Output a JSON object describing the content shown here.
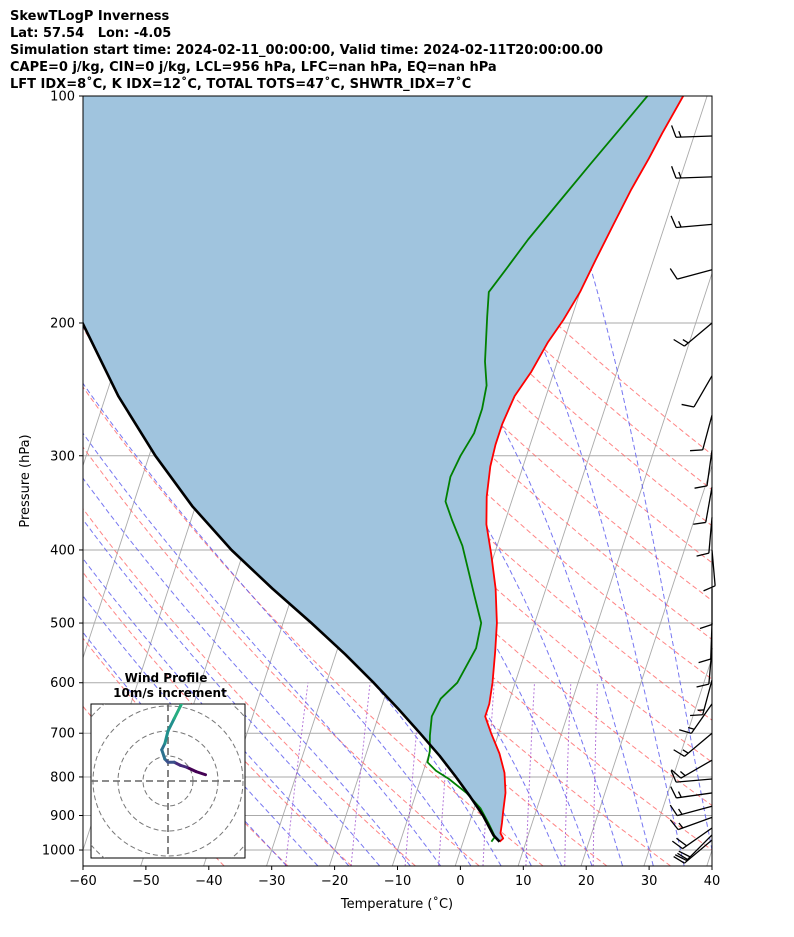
{
  "header": {
    "line1": "SkewTLogP Inverness",
    "line2": "Lat: 57.54   Lon: -4.05",
    "line3": "Simulation start time: 2024-02-11_00:00:00, Valid time: 2024-02-11T20:00:00.00",
    "line4": "CAPE=0 j/kg, CIN=0 j/kg, LCL=956 hPa, LFC=nan hPa, EQ=nan hPa",
    "line5": "LFT IDX=8˚C, K IDX=12˚C, TOTAL TOTS=47˚C, SHWTR_IDX=7˚C"
  },
  "colors": {
    "temperature": "#ff0000",
    "dewpoint": "#008000",
    "parcel": "#000000",
    "cape_shading": "#a0c4de",
    "dry_adiabats": "#ff6666",
    "moist_adiabats": "#5555ee",
    "mixing_ratio": "#9944cc",
    "isotherms": "#aaaaaa"
  },
  "chart_data": [
    {
      "type": "line",
      "subtype": "skew-t log-p",
      "title": "",
      "xlabel": "Temperature (˚C)",
      "ylabel": "Pressure (hPa)",
      "xlim": [
        -60,
        40
      ],
      "ylim": [
        1050,
        100
      ],
      "y_scale": "log",
      "grid": true,
      "x_ticks": [
        "−60",
        "−50",
        "−40",
        "−30",
        "−20",
        "−10",
        "0",
        "10",
        "20",
        "30",
        "40"
      ],
      "y_ticks": [
        "100",
        "200",
        "300",
        "400",
        "500",
        "600",
        "700",
        "800",
        "900",
        "1000"
      ],
      "series": [
        {
          "key": "temperature",
          "points": [
            [
              5.8,
              975
            ],
            [
              6.2,
              965
            ],
            [
              5.5,
              950
            ],
            [
              5.2,
              920
            ],
            [
              4.8,
              890
            ],
            [
              4.2,
              840
            ],
            [
              3.0,
              790
            ],
            [
              1.2,
              745
            ],
            [
              -1.2,
              700
            ],
            [
              -3.0,
              665
            ],
            [
              -3.0,
              640
            ],
            [
              -3.6,
              600
            ],
            [
              -4.8,
              545
            ],
            [
              -6.0,
              500
            ],
            [
              -8.0,
              450
            ],
            [
              -10.5,
              405
            ],
            [
              -12.8,
              370
            ],
            [
              -14.2,
              340
            ],
            [
              -15.2,
              310
            ],
            [
              -15.5,
              290
            ],
            [
              -15.5,
              272
            ],
            [
              -15.0,
              250
            ],
            [
              -13.6,
              232
            ],
            [
              -12.5,
              212
            ],
            [
              -11.2,
              198
            ],
            [
              -10.0,
              182
            ],
            [
              -9.2,
              165
            ],
            [
              -8.2,
              148
            ],
            [
              -7.2,
              133
            ],
            [
              -6.0,
              121
            ],
            [
              -5.2,
              112
            ],
            [
              -3.8,
              100
            ]
          ]
        },
        {
          "key": "dewpoint",
          "points": [
            [
              4.5,
              975
            ],
            [
              4.8,
              960
            ],
            [
              3.0,
              920
            ],
            [
              1.0,
              880
            ],
            [
              -2.0,
              840
            ],
            [
              -5.5,
              805
            ],
            [
              -8.0,
              785
            ],
            [
              -9.8,
              765
            ],
            [
              -10.0,
              740
            ],
            [
              -10.8,
              705
            ],
            [
              -11.5,
              665
            ],
            [
              -11.0,
              630
            ],
            [
              -9.2,
              600
            ],
            [
              -8.0,
              540
            ],
            [
              -8.5,
              500
            ],
            [
              -11.0,
              460
            ],
            [
              -13.0,
              430
            ],
            [
              -15.5,
              395
            ],
            [
              -18.5,
              365
            ],
            [
              -20.5,
              345
            ],
            [
              -21.0,
              320
            ],
            [
              -20.5,
              300
            ],
            [
              -19.5,
              280
            ],
            [
              -19.5,
              260
            ],
            [
              -20.0,
              242
            ],
            [
              -21.5,
              225
            ],
            [
              -22.5,
              210
            ],
            [
              -23.5,
              196
            ],
            [
              -24.5,
              182
            ],
            [
              -23.0,
              170
            ],
            [
              -21.0,
              155
            ],
            [
              -18.0,
              138
            ],
            [
              -15.0,
              123
            ],
            [
              -12.0,
              110
            ],
            [
              -9.5,
              100
            ]
          ]
        },
        {
          "key": "parcel",
          "points": [
            [
              5.8,
              975
            ],
            [
              4.5,
              956
            ],
            [
              1.8,
              900
            ],
            [
              -1.2,
              850
            ],
            [
              -4.5,
              800
            ],
            [
              -8.2,
              750
            ],
            [
              -12.5,
              700
            ],
            [
              -17.2,
              650
            ],
            [
              -22.5,
              600
            ],
            [
              -28.5,
              550
            ],
            [
              -35.5,
              500
            ],
            [
              -43.5,
              450
            ],
            [
              -52.0,
              400
            ],
            [
              -60.5,
              350
            ],
            [
              -69.0,
              300
            ],
            [
              -78.0,
              250
            ],
            [
              -87.5,
              200
            ],
            [
              -98.5,
              150
            ],
            [
              -109.0,
              120
            ],
            [
              -118.0,
              100
            ]
          ]
        }
      ],
      "wind_barbs": [
        {
          "p": 970,
          "speed": 20,
          "dir": 230
        },
        {
          "p": 955,
          "speed": 20,
          "dir": 225
        },
        {
          "p": 935,
          "speed": 20,
          "dir": 235
        },
        {
          "p": 905,
          "speed": 15,
          "dir": 250
        },
        {
          "p": 875,
          "speed": 15,
          "dir": 255
        },
        {
          "p": 840,
          "speed": 15,
          "dir": 262
        },
        {
          "p": 805,
          "speed": 10,
          "dir": 265
        },
        {
          "p": 760,
          "speed": 15,
          "dir": 240
        },
        {
          "p": 700,
          "speed": 15,
          "dir": 230
        },
        {
          "p": 640,
          "speed": 15,
          "dir": 215
        },
        {
          "p": 595,
          "speed": 15,
          "dir": 195
        },
        {
          "p": 540,
          "speed": 10,
          "dir": 185
        },
        {
          "p": 500,
          "speed": 10,
          "dir": 182
        },
        {
          "p": 450,
          "speed": 10,
          "dir": 180
        },
        {
          "p": 400,
          "speed": 10,
          "dir": 175
        },
        {
          "p": 362,
          "speed": 10,
          "dir": 185
        },
        {
          "p": 330,
          "speed": 10,
          "dir": 190
        },
        {
          "p": 295,
          "speed": 10,
          "dir": 188
        },
        {
          "p": 265,
          "speed": 10,
          "dir": 195
        },
        {
          "p": 235,
          "speed": 10,
          "dir": 210
        },
        {
          "p": 200,
          "speed": 15,
          "dir": 230
        },
        {
          "p": 170,
          "speed": 10,
          "dir": 255
        },
        {
          "p": 148,
          "speed": 15,
          "dir": 265
        },
        {
          "p": 128,
          "speed": 15,
          "dir": 268
        },
        {
          "p": 113,
          "speed": 15,
          "dir": 268
        }
      ]
    },
    {
      "type": "line",
      "subtype": "hodograph",
      "title": "Wind Profile",
      "subtitle": "10m/s increment",
      "grid": true,
      "ring_count": 3,
      "points": [
        [
          6,
          1
        ],
        [
          4.5,
          1.5
        ],
        [
          3,
          2.2
        ],
        [
          2,
          2.5
        ],
        [
          1,
          3
        ],
        [
          0,
          3
        ],
        [
          -0.5,
          3.5
        ],
        [
          -1,
          5
        ],
        [
          -0.5,
          6
        ],
        [
          0,
          8
        ],
        [
          1,
          10
        ],
        [
          2,
          12
        ],
        [
          3,
          14
        ],
        [
          3.5,
          15
        ],
        [
          3,
          16
        ],
        [
          2,
          17.5
        ],
        [
          0,
          18
        ],
        [
          -2,
          18
        ],
        [
          -4,
          18.5
        ]
      ]
    }
  ]
}
